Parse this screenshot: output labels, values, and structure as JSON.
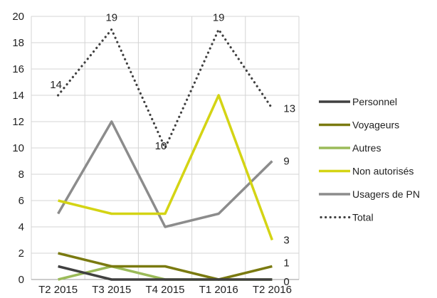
{
  "chart_data": {
    "type": "line",
    "categories": [
      "T2 2015",
      "T3 2015",
      "T4 2015",
      "T1 2016",
      "T2 2016"
    ],
    "ylim": [
      0,
      20
    ],
    "yticks": [
      0,
      2,
      4,
      6,
      8,
      10,
      12,
      14,
      16,
      18,
      20
    ],
    "grid": true,
    "legend_position": "right",
    "series": [
      {
        "name": "Personnel",
        "values": [
          1,
          0,
          0,
          0,
          0
        ],
        "color": "#404040",
        "style": "solid"
      },
      {
        "name": "Voyageurs",
        "values": [
          2,
          1,
          1,
          0,
          1
        ],
        "color": "#7a7a10",
        "style": "solid"
      },
      {
        "name": "Autres",
        "values": [
          0,
          1,
          0,
          0,
          0
        ],
        "color": "#9bbb59",
        "style": "solid"
      },
      {
        "name": "Non autorisés",
        "values": [
          6,
          5,
          5,
          14,
          3
        ],
        "color": "#d4d414",
        "style": "solid"
      },
      {
        "name": "Usagers de PN",
        "values": [
          5,
          12,
          4,
          5,
          9
        ],
        "color": "#8c8c8c",
        "style": "solid"
      },
      {
        "name": "Total",
        "values": [
          14,
          19,
          10,
          19,
          13
        ],
        "color": "#404040",
        "style": "dotted"
      }
    ],
    "data_labels": [
      {
        "series": "Total",
        "index": 0,
        "text": "14"
      },
      {
        "series": "Total",
        "index": 1,
        "text": "19"
      },
      {
        "series": "Total",
        "index": 2,
        "text": "10"
      },
      {
        "series": "Total",
        "index": 3,
        "text": "19"
      },
      {
        "series": "Total",
        "index": 4,
        "text": "13"
      },
      {
        "series": "Usagers de PN",
        "index": 4,
        "text": "9"
      },
      {
        "series": "Non autorisés",
        "index": 4,
        "text": "3"
      },
      {
        "series": "Voyageurs",
        "index": 4,
        "text": "1"
      },
      {
        "series": "Personnel",
        "index": 4,
        "text": "0"
      }
    ]
  }
}
